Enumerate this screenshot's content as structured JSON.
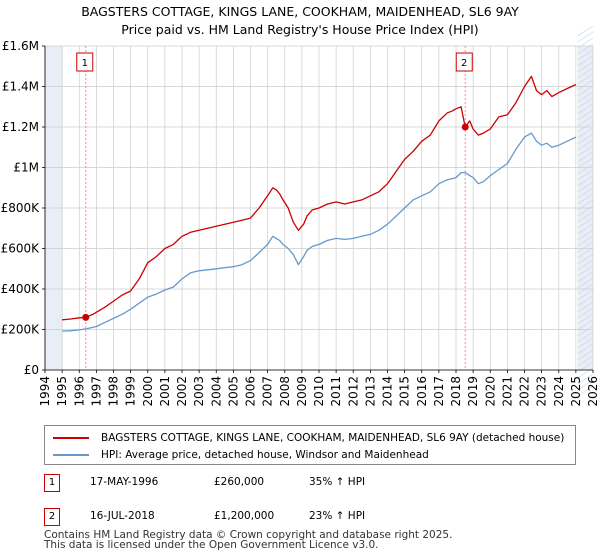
{
  "title": {
    "line1": "BAGSTERS COTTAGE, KINGS LANE, COOKHAM, MAIDENHEAD, SL6 9AY",
    "line2": "Price paid vs. HM Land Registry's House Price Index (HPI)"
  },
  "colors": {
    "property": "#cc0000",
    "hpi": "#6699cc",
    "shade": "#e8eef7",
    "grid": "#cccccc",
    "marker_line": "#ff8888"
  },
  "chart_data": {
    "type": "line",
    "title": "BAGSTERS COTTAGE, KINGS LANE, COOKHAM, MAIDENHEAD, SL6 9AY",
    "xlim": [
      1994,
      2026
    ],
    "ylim": [
      0,
      1600000
    ],
    "x_ticks": [
      "1994",
      "1995",
      "1996",
      "1997",
      "1998",
      "1999",
      "2000",
      "2001",
      "2002",
      "2003",
      "2004",
      "2005",
      "2006",
      "2007",
      "2008",
      "2009",
      "2010",
      "2011",
      "2012",
      "2013",
      "2014",
      "2015",
      "2016",
      "2017",
      "2018",
      "2019",
      "2020",
      "2021",
      "2022",
      "2023",
      "2024",
      "2025",
      "2026"
    ],
    "y_ticks": [
      {
        "value": 0,
        "label": "£0"
      },
      {
        "value": 200000,
        "label": "£200K"
      },
      {
        "value": 400000,
        "label": "£400K"
      },
      {
        "value": 600000,
        "label": "£600K"
      },
      {
        "value": 800000,
        "label": "£800K"
      },
      {
        "value": 1000000,
        "label": "£1M"
      },
      {
        "value": 1200000,
        "label": "£1.2M"
      },
      {
        "value": 1400000,
        "label": "£1.4M"
      },
      {
        "value": 1600000,
        "label": "£1.6M"
      }
    ],
    "shaded_ranges": [
      [
        1994,
        1995.0
      ],
      [
        2025.1,
        2026
      ]
    ],
    "series": [
      {
        "name": "BAGSTERS COTTAGE, KINGS LANE, COOKHAM, MAIDENHEAD, SL6 9AY (detached house)",
        "x": [
          1995.0,
          1995.5,
          1996.0,
          1996.38,
          1996.8,
          1997.5,
          1998.0,
          1998.5,
          1999.0,
          1999.5,
          2000.0,
          2000.5,
          2001.0,
          2001.5,
          2002.0,
          2002.5,
          2003.0,
          2003.5,
          2004.0,
          2004.5,
          2005.0,
          2005.5,
          2006.0,
          2006.5,
          2007.0,
          2007.3,
          2007.5,
          2007.7,
          2007.9,
          2008.2,
          2008.5,
          2008.8,
          2009.1,
          2009.3,
          2009.6,
          2010.0,
          2010.5,
          2011.0,
          2011.5,
          2012.0,
          2012.5,
          2013.0,
          2013.5,
          2014.0,
          2014.5,
          2015.0,
          2015.5,
          2016.0,
          2016.5,
          2017.0,
          2017.5,
          2017.8,
          2018.0,
          2018.3,
          2018.54,
          2018.8,
          2019.0,
          2019.3,
          2019.6,
          2020.0,
          2020.5,
          2021.0,
          2021.5,
          2022.0,
          2022.4,
          2022.7,
          2023.0,
          2023.3,
          2023.6,
          2024.0,
          2024.5,
          2025.0
        ],
        "y": [
          248000,
          252000,
          258000,
          260000,
          275000,
          310000,
          340000,
          370000,
          390000,
          450000,
          530000,
          560000,
          600000,
          620000,
          660000,
          680000,
          690000,
          700000,
          710000,
          720000,
          730000,
          740000,
          750000,
          800000,
          860000,
          900000,
          890000,
          870000,
          840000,
          800000,
          730000,
          690000,
          720000,
          760000,
          790000,
          800000,
          820000,
          830000,
          820000,
          830000,
          840000,
          860000,
          880000,
          920000,
          980000,
          1040000,
          1080000,
          1130000,
          1160000,
          1230000,
          1270000,
          1280000,
          1290000,
          1300000,
          1200000,
          1230000,
          1190000,
          1160000,
          1170000,
          1190000,
          1250000,
          1260000,
          1320000,
          1400000,
          1450000,
          1380000,
          1360000,
          1380000,
          1350000,
          1370000,
          1390000,
          1410000
        ]
      },
      {
        "name": "HPI: Average price, detached house, Windsor and Maidenhead",
        "x": [
          1995.0,
          1995.5,
          1996.0,
          1996.5,
          1997.0,
          1997.5,
          1998.0,
          1998.5,
          1999.0,
          1999.5,
          2000.0,
          2000.5,
          2001.0,
          2001.5,
          2002.0,
          2002.5,
          2003.0,
          2003.5,
          2004.0,
          2004.5,
          2005.0,
          2005.5,
          2006.0,
          2006.5,
          2007.0,
          2007.3,
          2007.5,
          2007.7,
          2007.9,
          2008.2,
          2008.5,
          2008.8,
          2009.1,
          2009.3,
          2009.6,
          2010.0,
          2010.5,
          2011.0,
          2011.5,
          2012.0,
          2012.5,
          2013.0,
          2013.5,
          2014.0,
          2014.5,
          2015.0,
          2015.5,
          2016.0,
          2016.5,
          2017.0,
          2017.5,
          2017.8,
          2018.0,
          2018.3,
          2018.54,
          2018.8,
          2019.0,
          2019.3,
          2019.6,
          2020.0,
          2020.5,
          2021.0,
          2021.5,
          2022.0,
          2022.4,
          2022.7,
          2023.0,
          2023.3,
          2023.6,
          2024.0,
          2024.5,
          2025.0
        ],
        "y": [
          192000,
          194000,
          198000,
          205000,
          215000,
          235000,
          255000,
          275000,
          300000,
          330000,
          360000,
          375000,
          395000,
          410000,
          450000,
          480000,
          490000,
          495000,
          500000,
          505000,
          510000,
          520000,
          540000,
          580000,
          620000,
          660000,
          650000,
          640000,
          620000,
          600000,
          570000,
          520000,
          560000,
          590000,
          610000,
          620000,
          640000,
          650000,
          645000,
          650000,
          660000,
          670000,
          690000,
          720000,
          760000,
          800000,
          840000,
          860000,
          880000,
          920000,
          940000,
          945000,
          950000,
          975000,
          975000,
          960000,
          950000,
          920000,
          930000,
          960000,
          990000,
          1020000,
          1090000,
          1150000,
          1170000,
          1130000,
          1110000,
          1120000,
          1100000,
          1110000,
          1130000,
          1150000
        ]
      }
    ],
    "annotations": [
      {
        "label": "1",
        "x": 1996.38,
        "y": 260000
      },
      {
        "label": "2",
        "x": 2018.54,
        "y": 1200000
      }
    ]
  },
  "legend": {
    "property_label": "BAGSTERS COTTAGE, KINGS LANE, COOKHAM, MAIDENHEAD, SL6 9AY (detached house)",
    "hpi_label": "HPI: Average price, detached house, Windsor and Maidenhead"
  },
  "transactions": [
    {
      "num": "1",
      "date": "17-MAY-1996",
      "price": "£260,000",
      "hpi": "35% ↑ HPI"
    },
    {
      "num": "2",
      "date": "16-JUL-2018",
      "price": "£1,200,000",
      "hpi": "23% ↑ HPI"
    }
  ],
  "footer": {
    "line1": "Contains HM Land Registry data © Crown copyright and database right 2025.",
    "line2": "This data is licensed under the Open Government Licence v3.0."
  }
}
